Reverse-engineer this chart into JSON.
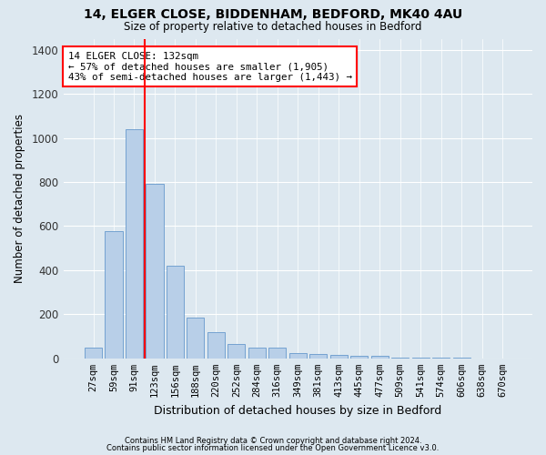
{
  "title_line1": "14, ELGER CLOSE, BIDDENHAM, BEDFORD, MK40 4AU",
  "title_line2": "Size of property relative to detached houses in Bedford",
  "xlabel": "Distribution of detached houses by size in Bedford",
  "ylabel": "Number of detached properties",
  "bar_color": "#b8cfe8",
  "bar_edge_color": "#6699cc",
  "background_color": "#dde8f0",
  "grid_color": "#ffffff",
  "categories": [
    "27sqm",
    "59sqm",
    "91sqm",
    "123sqm",
    "156sqm",
    "188sqm",
    "220sqm",
    "252sqm",
    "284sqm",
    "316sqm",
    "349sqm",
    "381sqm",
    "413sqm",
    "445sqm",
    "477sqm",
    "509sqm",
    "541sqm",
    "574sqm",
    "606sqm",
    "638sqm",
    "670sqm"
  ],
  "values": [
    50,
    575,
    1040,
    790,
    420,
    185,
    120,
    65,
    50,
    50,
    25,
    18,
    15,
    10,
    10,
    5,
    5,
    3,
    2,
    1,
    1
  ],
  "ylim": [
    0,
    1450
  ],
  "yticks": [
    0,
    200,
    400,
    600,
    800,
    1000,
    1200,
    1400
  ],
  "redline_x": 2.5,
  "annotation_line1": "14 ELGER CLOSE: 132sqm",
  "annotation_line2": "← 57% of detached houses are smaller (1,905)",
  "annotation_line3": "43% of semi-detached houses are larger (1,443) →",
  "footer1": "Contains HM Land Registry data © Crown copyright and database right 2024.",
  "footer2": "Contains public sector information licensed under the Open Government Licence v3.0."
}
